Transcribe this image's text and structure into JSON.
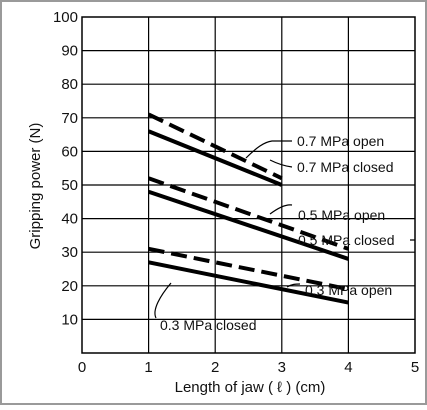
{
  "chart_data": {
    "type": "line",
    "xlabel": "Length of jaw ( ℓ ) (cm)",
    "ylabel": "Gripping power (N)",
    "xlim": [
      0,
      5
    ],
    "ylim": [
      0,
      100
    ],
    "x_ticks": [
      "0",
      "1",
      "2",
      "3",
      "4",
      "5"
    ],
    "y_ticks": [
      "10",
      "20",
      "30",
      "40",
      "50",
      "60",
      "70",
      "80",
      "90",
      "100"
    ],
    "grid": true,
    "series": [
      {
        "name": "0.7 MPa open",
        "style": "dashed",
        "x": [
          1,
          3
        ],
        "y": [
          71,
          52
        ]
      },
      {
        "name": "0.7 MPa closed",
        "style": "solid",
        "x": [
          1,
          3
        ],
        "y": [
          66,
          50
        ]
      },
      {
        "name": "0.5 MPa open",
        "style": "dashed",
        "x": [
          1,
          4
        ],
        "y": [
          52,
          31
        ]
      },
      {
        "name": "0.5 MPa closed",
        "style": "solid",
        "x": [
          1,
          4
        ],
        "y": [
          48,
          28
        ]
      },
      {
        "name": "0.3 MPa open",
        "style": "dashed",
        "x": [
          1,
          4
        ],
        "y": [
          31,
          19
        ]
      },
      {
        "name": "0.3 MPa closed",
        "style": "solid",
        "x": [
          1,
          4
        ],
        "y": [
          27,
          15
        ]
      }
    ],
    "colors": {
      "line": "#000000",
      "grid": "#000000",
      "frame": "#9a9a9a",
      "background": "#ffffff"
    }
  }
}
